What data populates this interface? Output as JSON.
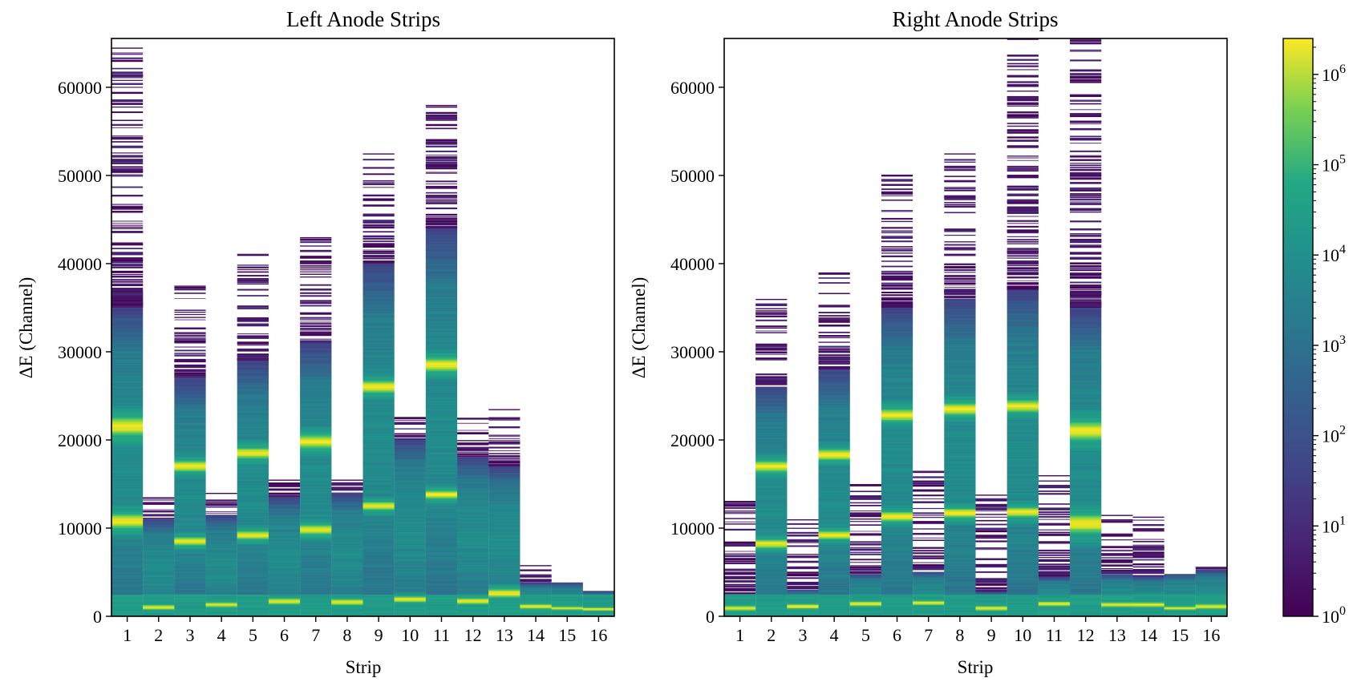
{
  "chart_data": [
    {
      "type": "heatmap",
      "title": "Left Anode Strips",
      "xlabel": "Strip",
      "ylabel": "ΔE (Channel)",
      "x_ticks": [
        "1",
        "2",
        "3",
        "4",
        "5",
        "6",
        "7",
        "8",
        "9",
        "10",
        "11",
        "12",
        "13",
        "14",
        "15",
        "16"
      ],
      "y_ticks": [
        "0",
        "10000",
        "20000",
        "30000",
        "40000",
        "50000",
        "60000"
      ],
      "y_tick_values": [
        0,
        10000,
        20000,
        30000,
        40000,
        50000,
        60000
      ],
      "ylim": [
        0,
        65535
      ],
      "color_scale": "viridis, log",
      "strips": [
        {
          "strip": 1,
          "dense_max": 35000,
          "sparse_max": 64500,
          "peaks": [
            {
              "y": 10800,
              "w": 1200
            },
            {
              "y": 21500,
              "w": 1500
            }
          ]
        },
        {
          "strip": 2,
          "dense_max": 11000,
          "sparse_max": 13500,
          "peaks": [
            {
              "y": 1000,
              "w": 400
            }
          ]
        },
        {
          "strip": 3,
          "dense_max": 27000,
          "sparse_max": 37500,
          "peaks": [
            {
              "y": 8500,
              "w": 700
            },
            {
              "y": 17000,
              "w": 900
            }
          ]
        },
        {
          "strip": 4,
          "dense_max": 11500,
          "sparse_max": 14000,
          "peaks": [
            {
              "y": 1300,
              "w": 400
            }
          ]
        },
        {
          "strip": 5,
          "dense_max": 29000,
          "sparse_max": 41000,
          "peaks": [
            {
              "y": 9200,
              "w": 700
            },
            {
              "y": 18500,
              "w": 900
            }
          ]
        },
        {
          "strip": 6,
          "dense_max": 13500,
          "sparse_max": 15500,
          "peaks": [
            {
              "y": 1700,
              "w": 500
            }
          ]
        },
        {
          "strip": 7,
          "dense_max": 31000,
          "sparse_max": 43000,
          "peaks": [
            {
              "y": 9800,
              "w": 800
            },
            {
              "y": 19800,
              "w": 1100
            }
          ]
        },
        {
          "strip": 8,
          "dense_max": 14000,
          "sparse_max": 15500,
          "peaks": [
            {
              "y": 1600,
              "w": 500
            }
          ]
        },
        {
          "strip": 9,
          "dense_max": 40000,
          "sparse_max": 52500,
          "peaks": [
            {
              "y": 12500,
              "w": 700
            },
            {
              "y": 26000,
              "w": 1000
            }
          ]
        },
        {
          "strip": 10,
          "dense_max": 20000,
          "sparse_max": 22500,
          "peaks": [
            {
              "y": 1900,
              "w": 500
            }
          ]
        },
        {
          "strip": 11,
          "dense_max": 44000,
          "sparse_max": 58000,
          "peaks": [
            {
              "y": 13800,
              "w": 700
            },
            {
              "y": 28500,
              "w": 1100
            }
          ]
        },
        {
          "strip": 12,
          "dense_max": 18000,
          "sparse_max": 22500,
          "peaks": [
            {
              "y": 1700,
              "w": 500
            }
          ]
        },
        {
          "strip": 13,
          "dense_max": 17000,
          "sparse_max": 23500,
          "peaks": [
            {
              "y": 2600,
              "w": 700
            }
          ]
        },
        {
          "strip": 14,
          "dense_max": 3800,
          "sparse_max": 5800,
          "peaks": [
            {
              "y": 1100,
              "w": 400
            }
          ]
        },
        {
          "strip": 15,
          "dense_max": 3800,
          "sparse_max": 3900,
          "peaks": [
            {
              "y": 900,
              "w": 300
            }
          ]
        },
        {
          "strip": 16,
          "dense_max": 2800,
          "sparse_max": 2900,
          "peaks": [
            {
              "y": 800,
              "w": 300
            }
          ]
        }
      ]
    },
    {
      "type": "heatmap",
      "title": "Right Anode Strips",
      "xlabel": "Strip",
      "ylabel": "ΔE (Channel)",
      "x_ticks": [
        "1",
        "2",
        "3",
        "4",
        "5",
        "6",
        "7",
        "8",
        "9",
        "10",
        "11",
        "12",
        "13",
        "14",
        "15",
        "16"
      ],
      "y_ticks": [
        "0",
        "10000",
        "20000",
        "30000",
        "40000",
        "50000",
        "60000"
      ],
      "y_tick_values": [
        0,
        10000,
        20000,
        30000,
        40000,
        50000,
        60000
      ],
      "ylim": [
        0,
        65535
      ],
      "color_scale": "viridis, log",
      "strips": [
        {
          "strip": 1,
          "dense_max": 2500,
          "sparse_max": 13000,
          "peaks": [
            {
              "y": 900,
              "w": 400
            }
          ]
        },
        {
          "strip": 2,
          "dense_max": 26000,
          "sparse_max": 36000,
          "peaks": [
            {
              "y": 8200,
              "w": 700
            },
            {
              "y": 17000,
              "w": 900
            }
          ]
        },
        {
          "strip": 3,
          "dense_max": 3000,
          "sparse_max": 11000,
          "peaks": [
            {
              "y": 1100,
              "w": 400
            }
          ]
        },
        {
          "strip": 4,
          "dense_max": 28000,
          "sparse_max": 39000,
          "peaks": [
            {
              "y": 9200,
              "w": 700
            },
            {
              "y": 18300,
              "w": 900
            }
          ]
        },
        {
          "strip": 5,
          "dense_max": 4800,
          "sparse_max": 15000,
          "peaks": [
            {
              "y": 1400,
              "w": 400
            }
          ]
        },
        {
          "strip": 6,
          "dense_max": 35000,
          "sparse_max": 50000,
          "peaks": [
            {
              "y": 11300,
              "w": 800
            },
            {
              "y": 22800,
              "w": 1000
            }
          ]
        },
        {
          "strip": 7,
          "dense_max": 5000,
          "sparse_max": 16500,
          "peaks": [
            {
              "y": 1500,
              "w": 400
            }
          ]
        },
        {
          "strip": 8,
          "dense_max": 36000,
          "sparse_max": 52500,
          "peaks": [
            {
              "y": 11700,
              "w": 800
            },
            {
              "y": 23500,
              "w": 1000
            }
          ]
        },
        {
          "strip": 9,
          "dense_max": 2800,
          "sparse_max": 13800,
          "peaks": [
            {
              "y": 900,
              "w": 400
            }
          ]
        },
        {
          "strip": 10,
          "dense_max": 37000,
          "sparse_max": 65500,
          "peaks": [
            {
              "y": 11800,
              "w": 800
            },
            {
              "y": 23800,
              "w": 1000
            }
          ]
        },
        {
          "strip": 11,
          "dense_max": 4500,
          "sparse_max": 16000,
          "peaks": [
            {
              "y": 1400,
              "w": 400
            }
          ]
        },
        {
          "strip": 12,
          "dense_max": 35000,
          "sparse_max": 65500,
          "peaks": [
            {
              "y": 10500,
              "w": 1500
            },
            {
              "y": 21000,
              "w": 1500
            }
          ]
        },
        {
          "strip": 13,
          "dense_max": 4800,
          "sparse_max": 11500,
          "peaks": [
            {
              "y": 1300,
              "w": 400
            }
          ]
        },
        {
          "strip": 14,
          "dense_max": 4500,
          "sparse_max": 11300,
          "peaks": [
            {
              "y": 1300,
              "w": 400
            }
          ]
        },
        {
          "strip": 15,
          "dense_max": 4800,
          "sparse_max": 4900,
          "peaks": [
            {
              "y": 900,
              "w": 300
            }
          ]
        },
        {
          "strip": 16,
          "dense_max": 5200,
          "sparse_max": 5600,
          "peaks": [
            {
              "y": 1100,
              "w": 400
            }
          ]
        }
      ]
    }
  ],
  "colorbar": {
    "colormap": "viridis",
    "scale": "log",
    "range": [
      1,
      2500000
    ],
    "ticks": [
      {
        "value": 1,
        "base": "10",
        "exp": "0"
      },
      {
        "value": 10,
        "base": "10",
        "exp": "1"
      },
      {
        "value": 100,
        "base": "10",
        "exp": "2"
      },
      {
        "value": 1000,
        "base": "10",
        "exp": "3"
      },
      {
        "value": 10000,
        "base": "10",
        "exp": "4"
      },
      {
        "value": 100000,
        "base": "10",
        "exp": "5"
      },
      {
        "value": 1000000,
        "base": "10",
        "exp": "6"
      }
    ]
  }
}
